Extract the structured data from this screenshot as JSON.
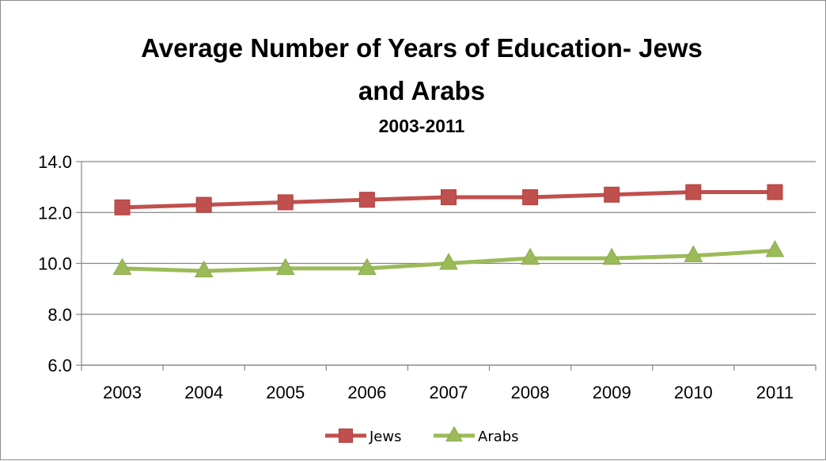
{
  "chart_data": {
    "type": "line",
    "title": "Average Number of Years of Education- Jews and Arabs",
    "title_lines": [
      "Average Number of Years of Education- Jews",
      "and Arabs"
    ],
    "subtitle": "2003-2011",
    "xlabel": "",
    "ylabel": "",
    "categories": [
      "2003",
      "2004",
      "2005",
      "2006",
      "2007",
      "2008",
      "2009",
      "2010",
      "2011"
    ],
    "ylim": [
      6.0,
      14.0
    ],
    "yticks": [
      6.0,
      8.0,
      10.0,
      12.0,
      14.0
    ],
    "ytick_labels": [
      "6.0",
      "8.0",
      "10.0",
      "12.0",
      "14.0"
    ],
    "grid": true,
    "legend_position": "bottom",
    "series": [
      {
        "name": "Jews",
        "marker": "square",
        "color": "#c0504d",
        "values": [
          12.2,
          12.3,
          12.4,
          12.5,
          12.6,
          12.6,
          12.7,
          12.8,
          12.8
        ]
      },
      {
        "name": "Arabs",
        "marker": "triangle",
        "color": "#9bbb59",
        "values": [
          9.8,
          9.7,
          9.8,
          9.8,
          10.0,
          10.2,
          10.2,
          10.3,
          10.5
        ]
      }
    ]
  }
}
